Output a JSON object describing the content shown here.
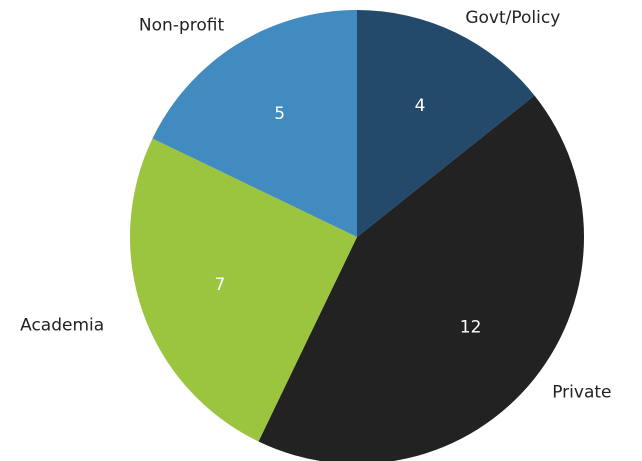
{
  "chart_data": {
    "type": "pie",
    "categories": [
      "Govt/Policy",
      "Private",
      "Academia",
      "Non-profit"
    ],
    "values": [
      4,
      12,
      7,
      5
    ],
    "colors": [
      "#234a6b",
      "#222222",
      "#9bc43f",
      "#428bc0"
    ]
  }
}
